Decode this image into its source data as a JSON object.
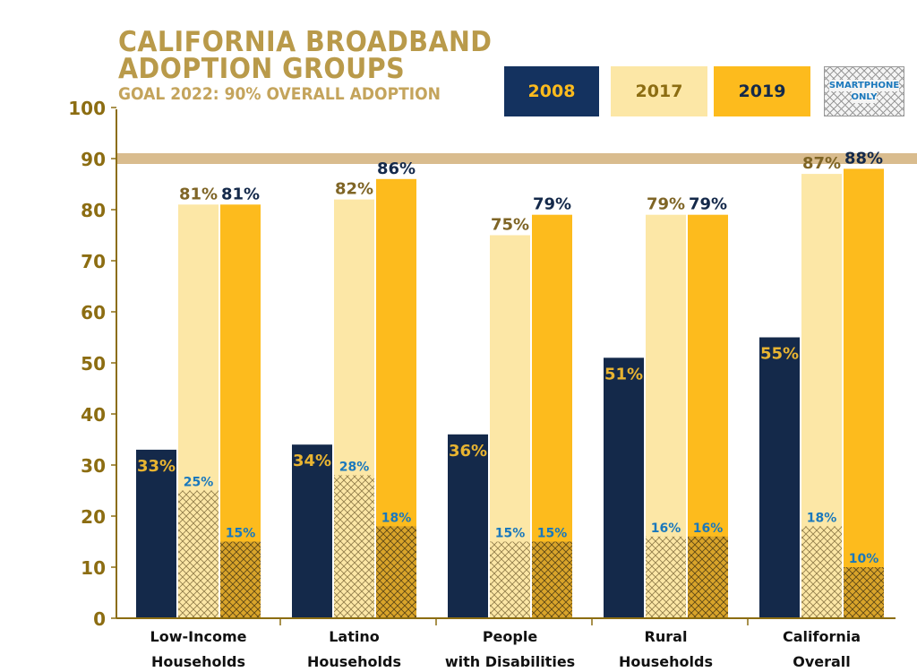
{
  "chart_data": {
    "type": "bar",
    "title": "CALIFORNIA BROADBAND ADOPTION GROUPS",
    "subtitle": "GOAL 2022:  90% OVERALL ADOPTION",
    "categories": [
      [
        "Low-Income",
        "Households"
      ],
      [
        "Latino",
        "Households"
      ],
      [
        "People",
        "with Disabilities"
      ],
      [
        "Rural",
        "Households"
      ],
      [
        "California",
        "Overall"
      ]
    ],
    "series": [
      {
        "name": "2008",
        "values": [
          33,
          34,
          36,
          51,
          55
        ],
        "labels": [
          "33%",
          "34%",
          "36%",
          "51%",
          "55%"
        ],
        "color": "#14294A",
        "label_color": "#E8B431"
      },
      {
        "name": "2017",
        "values": [
          81,
          82,
          75,
          79,
          87
        ],
        "labels": [
          "81%",
          "82%",
          "75%",
          "79%",
          "87%"
        ],
        "color": "#FCE7A6",
        "label_color": "#7F6526"
      },
      {
        "name": "2019",
        "values": [
          81,
          86,
          79,
          79,
          88
        ],
        "labels": [
          "81%",
          "86%",
          "79%",
          "79%",
          "88%"
        ],
        "color": "#FDBB1D",
        "label_color": "#14294A"
      }
    ],
    "smartphone_only": {
      "name": "SMARTPHONE ONLY",
      "name_lines": [
        "SMARTPHONE",
        "ONLY"
      ],
      "series_2017": [
        25,
        28,
        15,
        16,
        18
      ],
      "series_2019": [
        15,
        18,
        15,
        16,
        10
      ],
      "labels_2017": [
        "25%",
        "28%",
        "15%",
        "16%",
        "18%"
      ],
      "labels_2019": [
        "15%",
        "18%",
        "15%",
        "16%",
        "10%"
      ],
      "label_color": "#1A78BC"
    },
    "goal_line": {
      "value": 90,
      "color": "#D9BC8E"
    },
    "ylim": [
      0,
      100
    ],
    "yticks": [
      0,
      10,
      20,
      30,
      40,
      50,
      60,
      70,
      80,
      90,
      100
    ],
    "grid": false,
    "legend_position": "top-right",
    "axis_color": "#8C6D12"
  }
}
